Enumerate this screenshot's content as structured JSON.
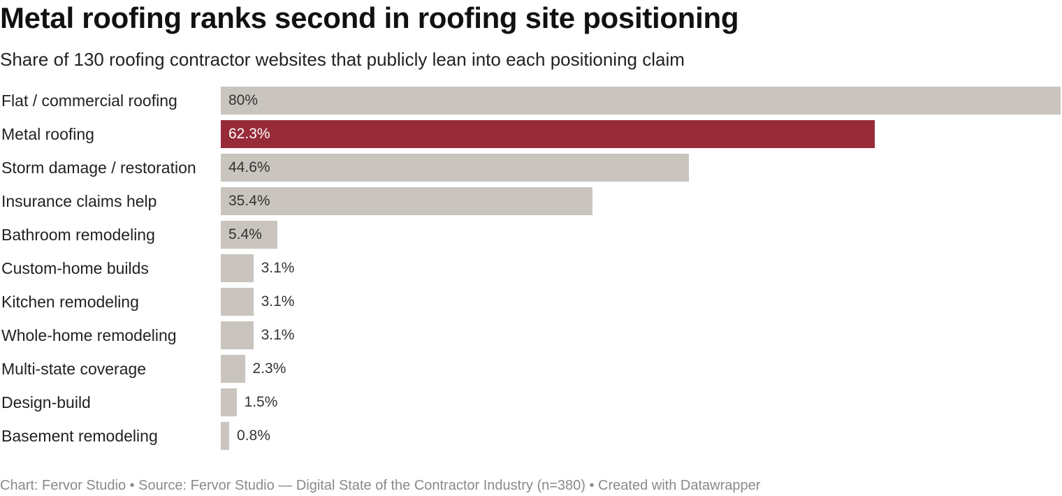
{
  "chart_data": {
    "type": "bar",
    "orientation": "horizontal",
    "title": "Metal roofing ranks second in roofing site positioning",
    "subtitle": "Share of 130 roofing contractor websites that publicly lean into each positioning claim",
    "categories": [
      "Flat / commercial roofing",
      "Metal roofing",
      "Storm damage / restoration",
      "Insurance claims help",
      "Bathroom remodeling",
      "Custom-home builds",
      "Kitchen remodeling",
      "Whole-home remodeling",
      "Multi-state coverage",
      "Design-build",
      "Basement remodeling"
    ],
    "values": [
      80,
      62.3,
      44.6,
      35.4,
      5.4,
      3.1,
      3.1,
      3.1,
      2.3,
      1.5,
      0.8
    ],
    "value_labels": [
      "80%",
      "62.3%",
      "44.6%",
      "35.4%",
      "5.4%",
      "3.1%",
      "3.1%",
      "3.1%",
      "2.3%",
      "1.5%",
      "0.8%"
    ],
    "highlight_category": "Metal roofing",
    "xlim": [
      0,
      80
    ],
    "grid": false,
    "legend": "none",
    "colors": {
      "default_bar": "#c9c5be",
      "highlight_bar": "#972b38"
    }
  },
  "footer": {
    "text": "Chart: Fervor Studio • Source: Fervor Studio — Digital State of the Contractor Industry (n=380) • Created with Datawrapper"
  }
}
